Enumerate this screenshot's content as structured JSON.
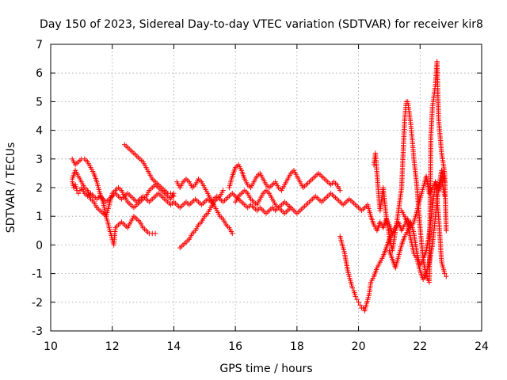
{
  "chart_data": {
    "type": "scatter",
    "title": "Day 150 of 2023, Sidereal Day-to-day VTEC variation (SDTVAR) for receiver kir8",
    "xlabel": "GPS time / hours",
    "ylabel": "SDTVAR / TECUs",
    "xlim": [
      10,
      24
    ],
    "ylim": [
      -3,
      7
    ],
    "xticks": [
      "10",
      "12",
      "14",
      "16",
      "18",
      "20",
      "22",
      "24"
    ],
    "yticks": [
      "-3",
      "-2",
      "-1",
      "0",
      "1",
      "2",
      "3",
      "4",
      "5",
      "6",
      "7"
    ],
    "grid": true,
    "marker": "plus",
    "color": "#ff0000",
    "series": [
      {
        "name": "SDTVAR",
        "x": [
          10.7,
          10.75,
          10.8,
          10.85,
          10.9,
          10.95,
          11.0,
          11.1,
          11.2,
          11.3,
          11.4,
          11.5,
          11.6,
          11.7,
          11.8,
          11.9,
          12.0,
          12.1,
          12.2,
          12.3,
          12.4,
          12.5,
          12.6,
          12.7,
          12.8,
          12.9,
          13.0,
          13.1,
          13.2,
          13.3,
          13.4,
          13.5,
          13.6,
          13.7,
          13.8,
          13.9,
          14.0,
          14.1,
          14.2,
          14.3,
          14.4,
          14.5,
          14.6,
          14.7,
          14.8,
          14.9,
          15.0,
          15.1,
          15.2,
          15.3,
          15.4,
          15.5,
          15.6,
          15.7,
          15.8,
          15.9,
          16.0,
          16.1,
          16.2,
          16.3,
          16.4,
          16.5,
          16.6,
          16.7,
          16.8,
          16.9,
          17.0,
          17.1,
          17.2,
          17.3,
          17.4,
          17.5,
          17.6,
          17.7,
          17.8,
          17.9,
          18.0,
          18.1,
          18.2,
          18.3,
          18.4,
          18.5,
          18.6,
          18.7,
          18.8,
          18.9,
          19.0,
          19.1,
          19.2,
          19.3,
          19.4,
          19.5,
          19.6,
          19.7,
          19.8,
          19.9,
          20.0,
          20.1,
          20.2,
          20.3,
          20.4,
          20.5,
          20.6,
          20.7,
          20.8,
          20.9,
          21.0,
          21.1,
          21.2,
          21.3,
          21.4,
          21.5,
          21.6,
          21.7,
          21.8,
          21.9,
          22.0,
          22.1,
          22.2,
          22.3,
          22.4,
          22.5,
          22.6,
          22.7,
          22.8
        ],
        "y": [
          2.2,
          2.0,
          2.1,
          1.9,
          1.8,
          1.9,
          2.0,
          1.8,
          1.7,
          1.8,
          1.7,
          1.6,
          1.7,
          1.6,
          1.5,
          1.6,
          1.7,
          1.8,
          1.7,
          1.6,
          1.7,
          1.8,
          1.7,
          1.6,
          1.5,
          1.6,
          1.7,
          1.6,
          1.5,
          1.6,
          1.7,
          1.8,
          1.7,
          1.6,
          1.5,
          1.4,
          1.5,
          1.4,
          1.3,
          1.4,
          1.5,
          1.4,
          1.5,
          1.6,
          1.5,
          1.4,
          1.5,
          1.6,
          1.5,
          1.6,
          1.7,
          1.6,
          1.5,
          1.6,
          1.7,
          1.8,
          1.7,
          1.6,
          1.5,
          1.4,
          1.3,
          1.4,
          1.3,
          1.2,
          1.3,
          1.2,
          1.1,
          1.2,
          1.3,
          1.2,
          1.3,
          1.4,
          1.5,
          1.4,
          1.3,
          1.2,
          1.1,
          1.2,
          1.3,
          1.4,
          1.5,
          1.6,
          1.7,
          1.6,
          1.5,
          1.6,
          1.7,
          1.8,
          1.7,
          1.6,
          1.5,
          1.4,
          1.5,
          1.6,
          1.5,
          1.4,
          1.3,
          1.2,
          1.3,
          1.4,
          1.0,
          0.7,
          0.5,
          0.8,
          0.6,
          0.9,
          0.7,
          0.4,
          0.6,
          0.8,
          0.5,
          0.7,
          0.9,
          0.6,
          0.8,
          1.2,
          1.6,
          2.0,
          2.4,
          1.8,
          2.0,
          2.2,
          1.9,
          2.3,
          1.7
        ]
      },
      {
        "name": "SDTVAR",
        "x": [
          10.7,
          10.8,
          10.9,
          11.0,
          11.1,
          11.2,
          11.3,
          11.4,
          11.5,
          11.6,
          11.7,
          11.8,
          11.9,
          12.0,
          12.05,
          12.1,
          12.2,
          12.3,
          12.4,
          12.5,
          12.6,
          12.7,
          12.8,
          12.9,
          13.0,
          13.1,
          13.2,
          13.3,
          13.4
        ],
        "y": [
          3.0,
          2.8,
          2.9,
          3.0,
          3.0,
          2.9,
          2.7,
          2.5,
          2.2,
          1.8,
          1.5,
          1.0,
          0.6,
          0.2,
          0.0,
          0.6,
          0.7,
          0.8,
          0.7,
          0.6,
          0.8,
          1.0,
          0.9,
          0.8,
          0.6,
          0.5,
          0.4,
          0.4,
          0.4
        ]
      },
      {
        "name": "SDTVAR",
        "x": [
          10.7,
          10.8,
          10.9,
          11.0,
          11.1,
          11.2,
          11.3,
          11.4,
          11.5,
          11.6,
          11.7,
          11.8,
          11.9,
          12.0,
          12.1,
          12.2,
          12.3,
          12.4,
          12.5,
          12.6,
          12.7,
          12.8,
          12.9,
          13.0,
          13.1,
          13.2,
          13.3,
          13.4,
          13.5,
          13.6,
          13.7,
          13.8,
          13.9,
          14.0
        ],
        "y": [
          2.3,
          2.6,
          2.4,
          2.2,
          2.0,
          1.9,
          1.6,
          1.5,
          1.3,
          1.2,
          1.1,
          1.0,
          1.4,
          1.8,
          1.9,
          2.0,
          1.9,
          1.7,
          1.5,
          1.4,
          1.3,
          1.4,
          1.5,
          1.6,
          1.7,
          1.9,
          2.0,
          2.1,
          2.0,
          1.9,
          1.8,
          1.7,
          1.6,
          1.8
        ]
      },
      {
        "name": "SDTVAR",
        "x": [
          12.4,
          12.5,
          12.6,
          12.7,
          12.8,
          12.9,
          13.0,
          13.1,
          13.2,
          13.3,
          13.4,
          13.5,
          13.6,
          13.7,
          13.8,
          13.9,
          14.0
        ],
        "y": [
          3.5,
          3.4,
          3.3,
          3.2,
          3.1,
          3.0,
          2.9,
          2.7,
          2.5,
          2.3,
          2.2,
          2.1,
          2.0,
          1.9,
          1.8,
          1.8,
          1.7
        ]
      },
      {
        "name": "SDTVAR",
        "x": [
          14.1,
          14.2,
          14.3,
          14.4,
          14.5,
          14.6,
          14.7,
          14.8,
          14.9,
          15.0,
          15.1,
          15.2,
          15.3,
          15.4,
          15.5,
          15.6,
          15.7,
          15.8,
          15.9
        ],
        "y": [
          2.2,
          2.0,
          2.2,
          2.3,
          2.2,
          2.0,
          2.1,
          2.3,
          2.2,
          2.0,
          1.8,
          1.6,
          1.4,
          1.2,
          1.0,
          0.9,
          0.7,
          0.6,
          0.4
        ]
      },
      {
        "name": "SDTVAR",
        "x": [
          14.2,
          14.3,
          14.4,
          14.5,
          14.6,
          14.7,
          14.8,
          14.9,
          15.0,
          15.1,
          15.2,
          15.3,
          15.4,
          15.5,
          15.6
        ],
        "y": [
          -0.1,
          0.0,
          0.1,
          0.2,
          0.4,
          0.5,
          0.7,
          0.8,
          1.0,
          1.1,
          1.3,
          1.5,
          1.6,
          1.7,
          1.9
        ]
      },
      {
        "name": "SDTVAR",
        "x": [
          15.8,
          15.9,
          16.0,
          16.1,
          16.2,
          16.3,
          16.4,
          16.5,
          16.6,
          16.7,
          16.8,
          16.9,
          17.0,
          17.1,
          17.2,
          17.3,
          17.4,
          17.5,
          17.6,
          17.7,
          17.8,
          17.9,
          18.0,
          18.1,
          18.2,
          18.3,
          18.4,
          18.5,
          18.6,
          18.7,
          18.8,
          18.9,
          19.0,
          19.1,
          19.2,
          19.3,
          19.4
        ],
        "y": [
          2.0,
          2.4,
          2.7,
          2.8,
          2.6,
          2.3,
          2.1,
          2.0,
          2.2,
          2.4,
          2.5,
          2.3,
          2.1,
          2.0,
          2.1,
          2.2,
          2.0,
          1.9,
          2.1,
          2.3,
          2.5,
          2.6,
          2.4,
          2.2,
          2.0,
          2.1,
          2.2,
          2.3,
          2.4,
          2.5,
          2.4,
          2.3,
          2.2,
          2.1,
          2.2,
          2.1,
          1.9
        ]
      },
      {
        "name": "SDTVAR",
        "x": [
          16.0,
          16.1,
          16.2,
          16.3,
          16.4,
          16.5,
          16.6,
          16.7,
          16.8,
          16.9,
          17.0,
          17.1,
          17.2,
          17.3,
          17.4,
          17.5,
          17.6,
          17.7,
          17.8
        ],
        "y": [
          1.5,
          1.7,
          1.8,
          1.9,
          1.8,
          1.6,
          1.5,
          1.4,
          1.6,
          1.8,
          1.9,
          1.8,
          1.6,
          1.4,
          1.3,
          1.2,
          1.1,
          1.2,
          1.3
        ]
      },
      {
        "name": "SDTVAR",
        "x": [
          19.4,
          19.45,
          19.5,
          19.55,
          19.6,
          19.65,
          19.7,
          19.75,
          19.8,
          19.85,
          19.9,
          19.95,
          20.0,
          20.05,
          20.1,
          20.15,
          20.2,
          20.25,
          20.3,
          20.35,
          20.4,
          20.5,
          20.6,
          20.7,
          20.8,
          20.9,
          21.0,
          21.1
        ],
        "y": [
          0.3,
          0.1,
          -0.1,
          -0.3,
          -0.6,
          -0.9,
          -1.1,
          -1.3,
          -1.5,
          -1.6,
          -1.8,
          -1.9,
          -2.0,
          -2.1,
          -2.2,
          -2.2,
          -2.3,
          -2.1,
          -1.9,
          -1.7,
          -1.3,
          -1.1,
          -0.8,
          -0.6,
          -0.4,
          -0.1,
          0.2,
          0.4
        ]
      },
      {
        "name": "SDTVAR",
        "x": [
          20.5,
          20.55,
          20.6,
          20.65,
          20.7,
          20.75,
          20.8,
          20.9,
          21.0,
          21.1,
          21.2,
          21.3,
          21.4,
          21.5,
          21.55,
          21.6,
          21.65,
          21.7,
          21.75,
          21.8,
          21.9,
          22.0,
          22.1,
          22.2,
          22.3,
          22.35,
          22.4,
          22.45,
          22.5,
          22.55,
          22.6,
          22.7,
          22.8,
          22.85
        ],
        "y": [
          2.8,
          3.2,
          2.5,
          1.8,
          1.2,
          1.6,
          2.0,
          1.0,
          0.3,
          -0.2,
          0.5,
          1.2,
          2.0,
          4.4,
          5.0,
          5.0,
          4.6,
          4.2,
          3.6,
          3.0,
          2.0,
          0.6,
          -0.5,
          -1.1,
          -1.3,
          3.8,
          4.8,
          5.2,
          5.6,
          6.4,
          4.4,
          3.2,
          2.5,
          0.5
        ]
      },
      {
        "name": "SDTVAR",
        "x": [
          21.0,
          21.1,
          21.2,
          21.3,
          21.4,
          21.5,
          21.6,
          21.7,
          21.8,
          21.9,
          22.0,
          22.1,
          22.2,
          22.3,
          22.4,
          22.5,
          22.6,
          22.7,
          22.8,
          22.85
        ],
        "y": [
          -0.2,
          -0.5,
          -0.8,
          -0.4,
          0.0,
          0.3,
          0.5,
          0.8,
          0.4,
          -0.3,
          -0.7,
          -0.5,
          -0.2,
          0.4,
          1.3,
          2.2,
          1.0,
          -0.6,
          -1.0,
          -1.1
        ]
      },
      {
        "name": "SDTVAR",
        "x": [
          21.4,
          21.5,
          21.6,
          21.7,
          21.8,
          21.9,
          22.0,
          22.1,
          22.2,
          22.3,
          22.4,
          22.5,
          22.6,
          22.7,
          22.8
        ],
        "y": [
          1.2,
          1.0,
          0.7,
          0.2,
          -0.3,
          -0.5,
          -0.9,
          -1.2,
          -1.0,
          -0.6,
          0.0,
          1.0,
          2.0,
          2.6,
          2.2
        ]
      }
    ]
  }
}
